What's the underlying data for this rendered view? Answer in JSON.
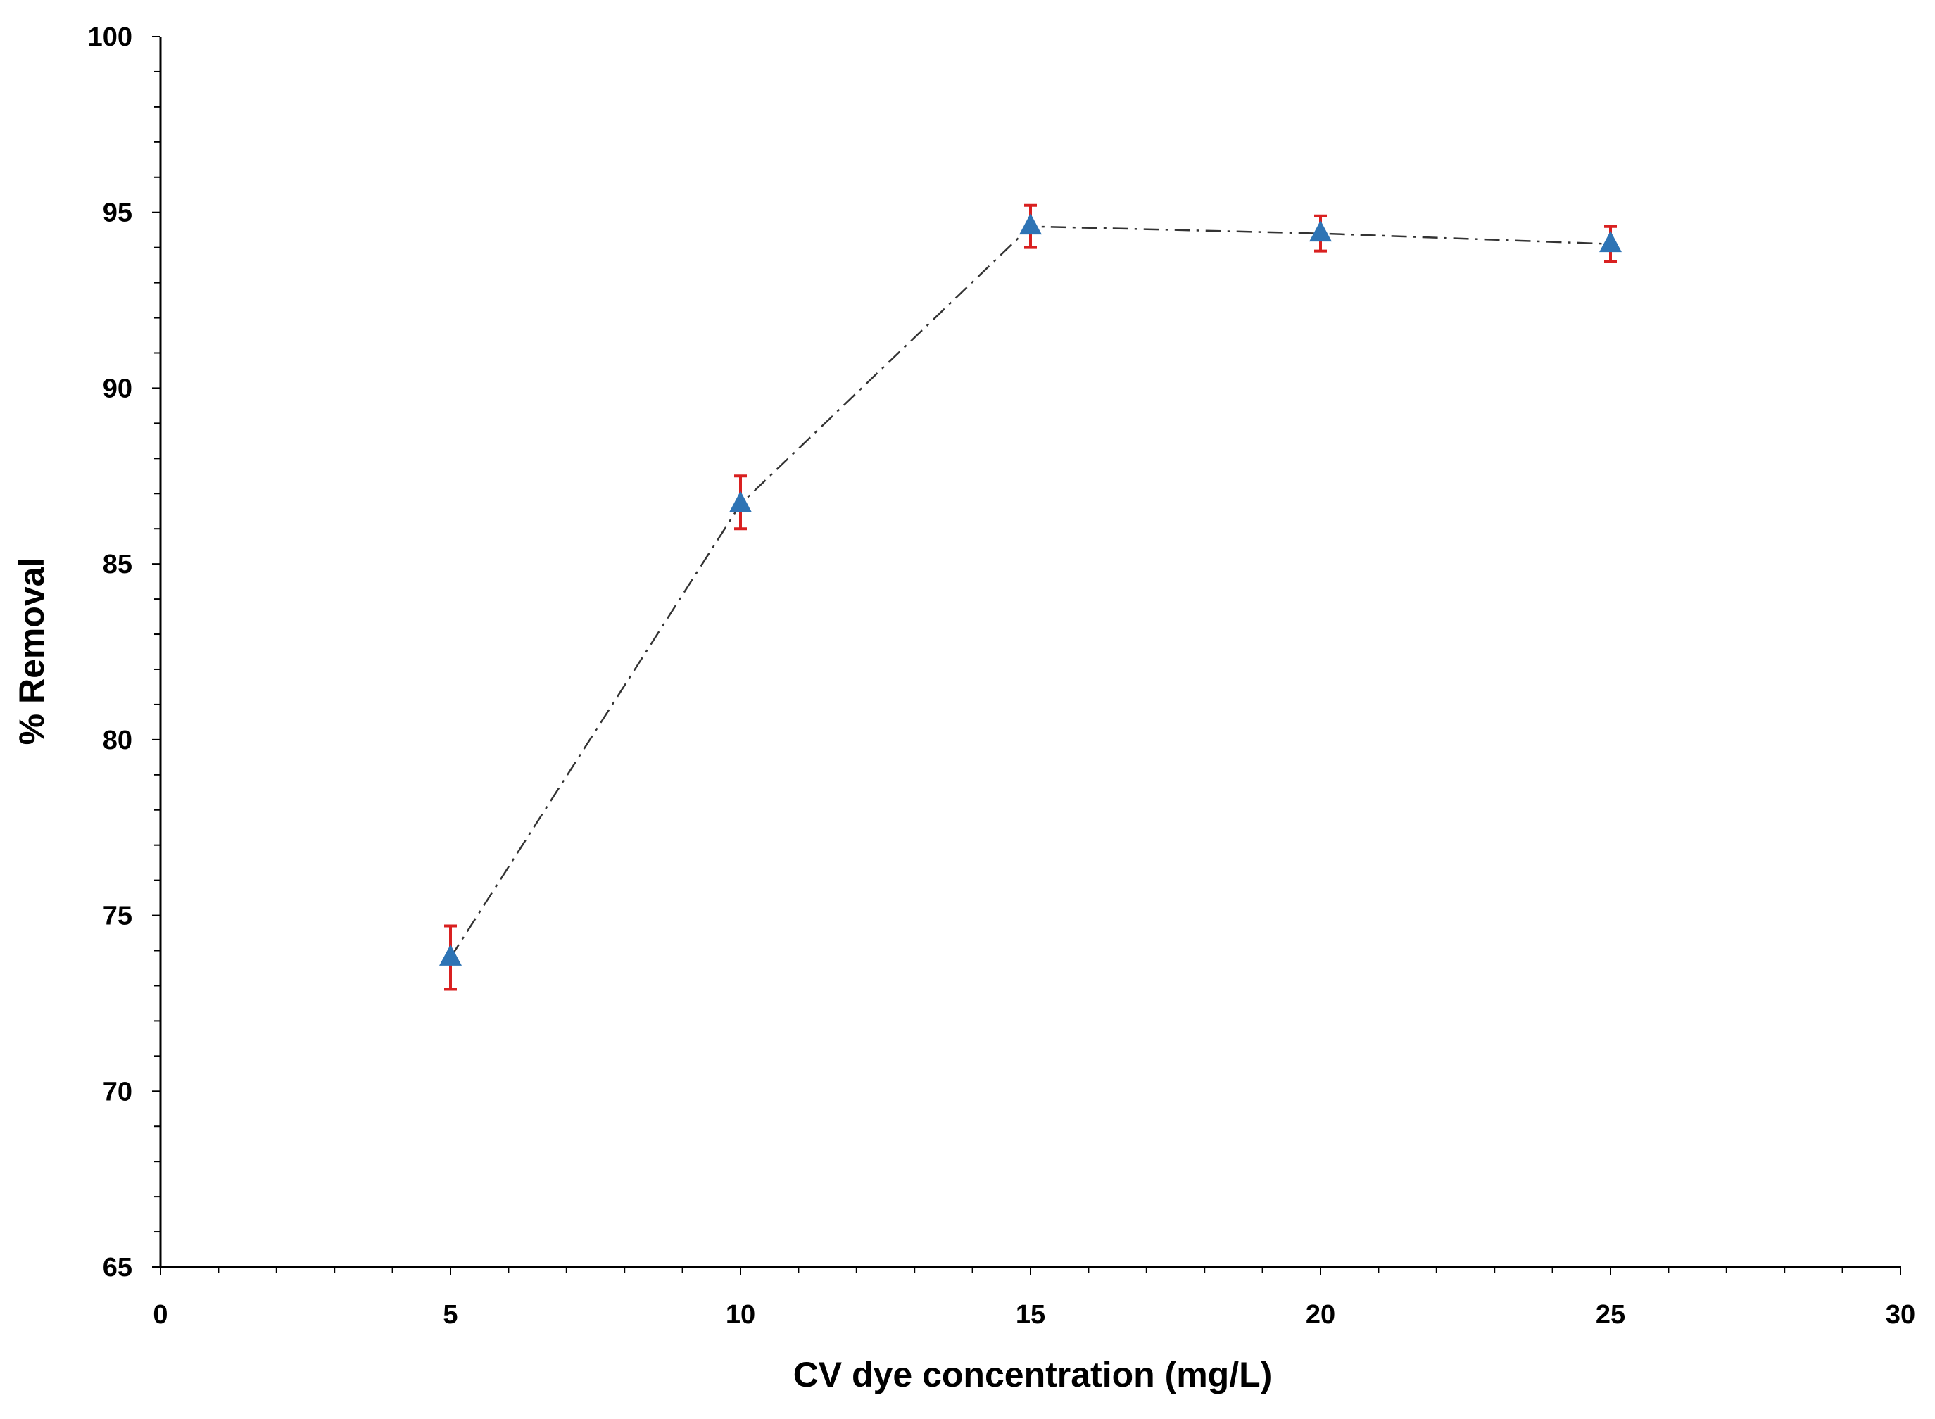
{
  "chart_data": {
    "type": "scatter",
    "title": "",
    "xlabel": "CV dye concentration (mg/L)",
    "ylabel": "% Removal",
    "xlim": [
      0,
      30
    ],
    "ylim": [
      65,
      100
    ],
    "x_major_ticks": [
      0,
      5,
      10,
      15,
      20,
      25,
      30
    ],
    "x_minor_step": 1,
    "y_major_ticks": [
      65,
      70,
      75,
      80,
      85,
      90,
      95,
      100
    ],
    "y_minor_step": 1,
    "grid": false,
    "legend": "none",
    "series": [
      {
        "name": "% Removal",
        "marker": "triangle",
        "line_style": "dash-dot",
        "x": [
          5,
          10,
          15,
          20,
          25
        ],
        "y": [
          73.8,
          86.7,
          94.6,
          94.4,
          94.1
        ],
        "error_low": [
          72.9,
          86.0,
          94.0,
          93.9,
          93.6
        ],
        "error_high": [
          74.7,
          87.5,
          95.2,
          94.9,
          94.6
        ]
      }
    ],
    "colors": {
      "marker": "#2E74B5",
      "error_bar": "#D92020",
      "line": "#333333",
      "axis": "#000000"
    }
  }
}
